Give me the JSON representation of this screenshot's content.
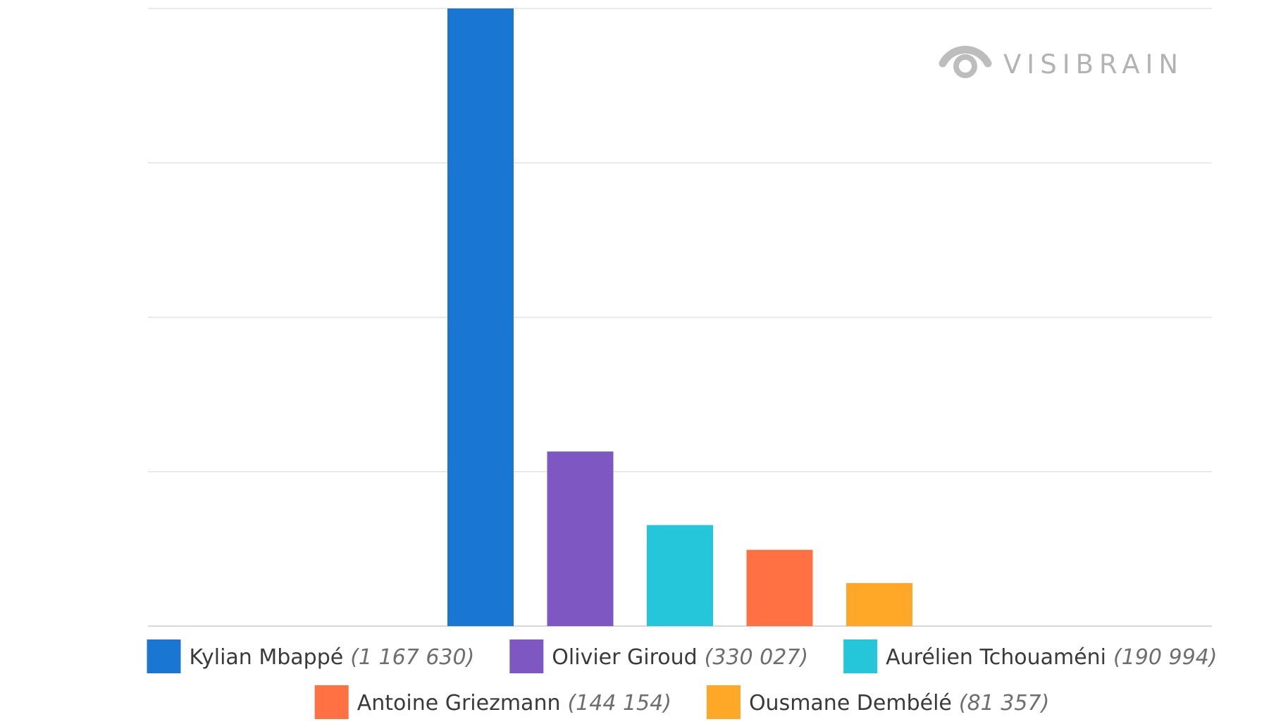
{
  "logo": {
    "text": "VISIBRAIN",
    "icon": "eye-icon",
    "color": "#b3b3b3"
  },
  "chart_data": {
    "type": "bar",
    "title": "",
    "xlabel": "",
    "ylabel": "",
    "grid": true,
    "legend_position": "bottom",
    "ylim": [
      0,
      1167630
    ],
    "categories": [
      "Kylian Mbappé",
      "Olivier Giroud",
      "Aurélien Tchouaméni",
      "Antoine Griezmann",
      "Ousmane Dembélé"
    ],
    "values": [
      1167630,
      330027,
      190994,
      144154,
      81357
    ],
    "colors": [
      "#1976d2",
      "#7e57c2",
      "#26c6da",
      "#ff7043",
      "#ffa726"
    ],
    "legend_labels": [
      "(1 167 630)",
      "(330 027)",
      "(190 994)",
      "(144 154)",
      "(81 357)"
    ]
  }
}
